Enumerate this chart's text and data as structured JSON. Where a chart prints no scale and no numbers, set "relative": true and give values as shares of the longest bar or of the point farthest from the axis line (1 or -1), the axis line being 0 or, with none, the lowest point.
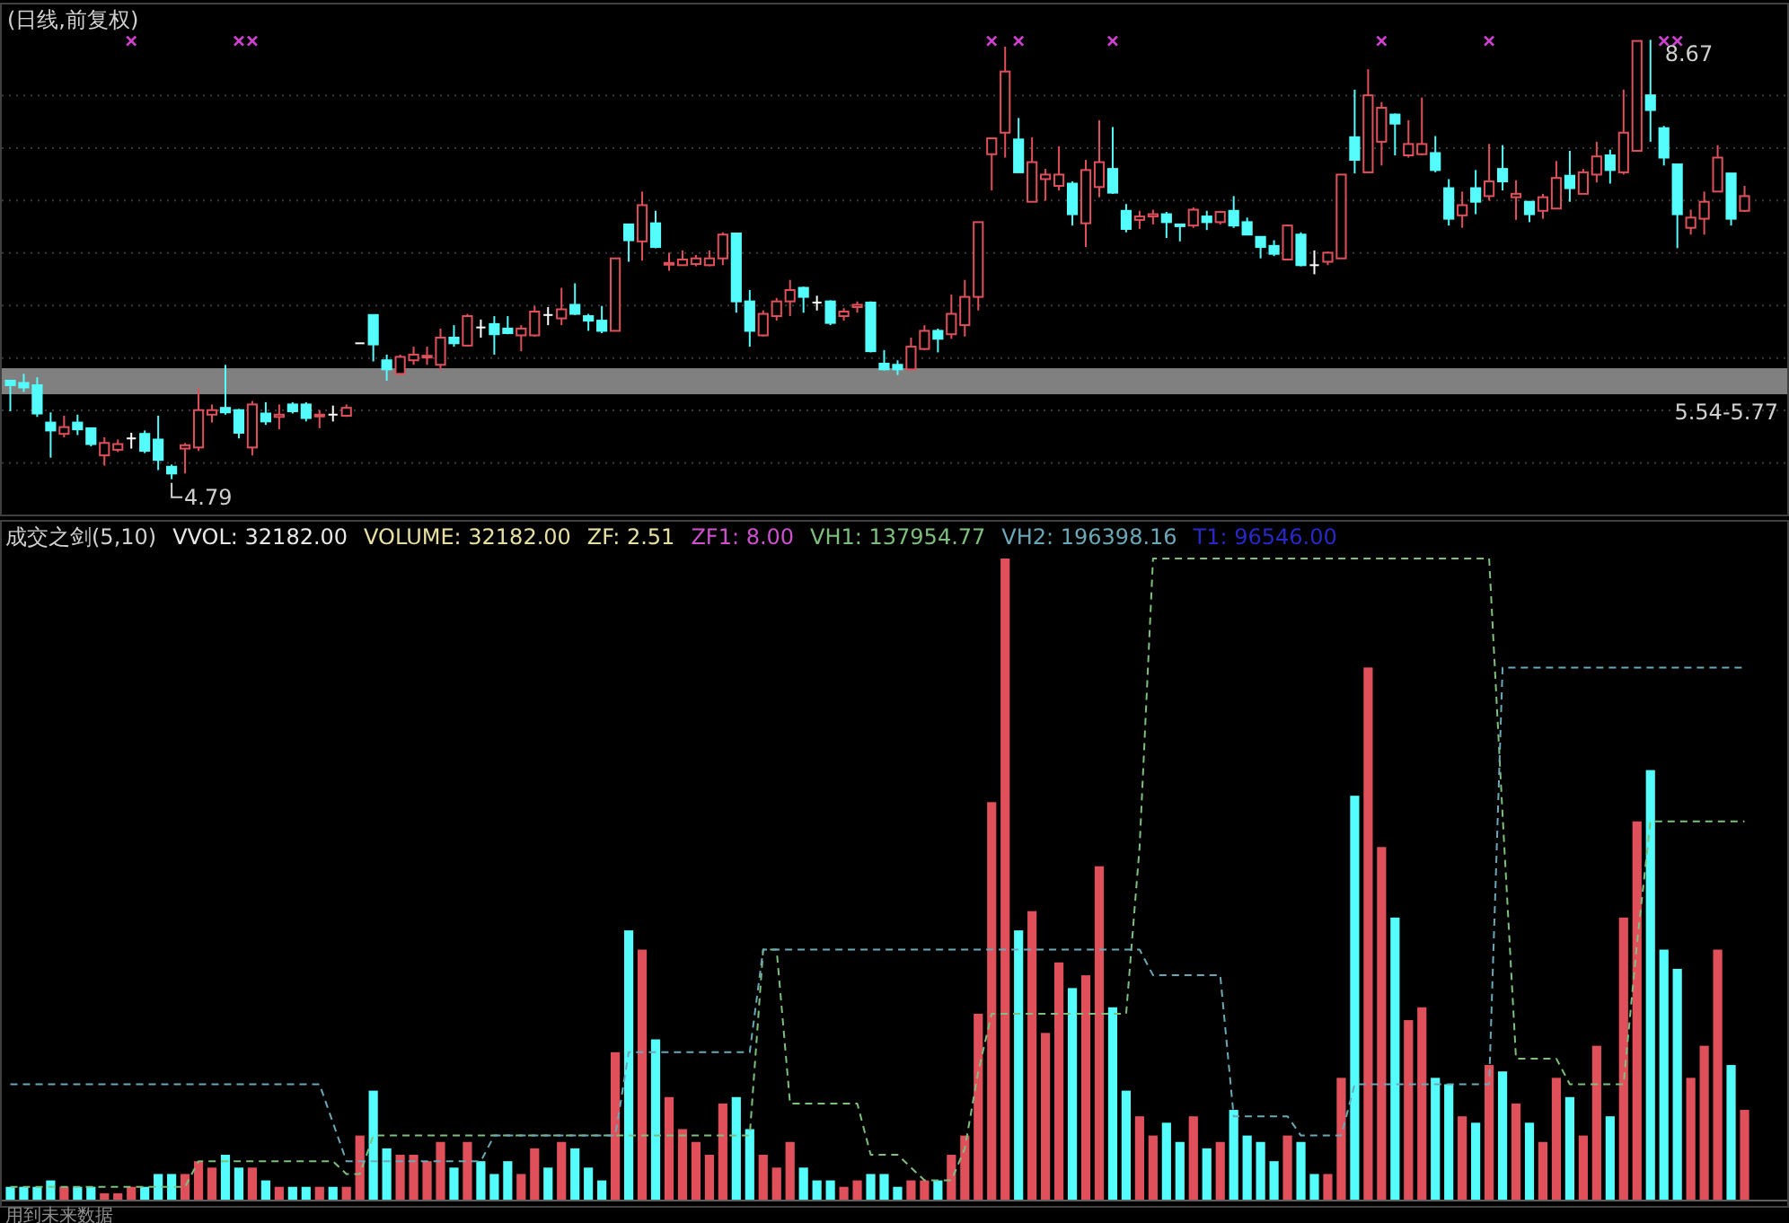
{
  "chart_data": [
    {
      "type": "candlestick",
      "title": "(日线,前复权)",
      "grid": true,
      "ylim": [
        4.47,
        8.99
      ],
      "marker": "cross",
      "categories": [
        null,
        null,
        null,
        null,
        null,
        null,
        null,
        null,
        null,
        null,
        null,
        null,
        null,
        null,
        null,
        null,
        null,
        null,
        null,
        null,
        null,
        null,
        null,
        null,
        null,
        null,
        null,
        null,
        null,
        null,
        null,
        null,
        null,
        null,
        null,
        null,
        null,
        null,
        null,
        null,
        null,
        null,
        null,
        null,
        null,
        null,
        null,
        null,
        null,
        null,
        null,
        null,
        null,
        null,
        null,
        null,
        null,
        null,
        null,
        null,
        null,
        null,
        null,
        null,
        null,
        null,
        null,
        null,
        null,
        null,
        null,
        null,
        null,
        null,
        null,
        null,
        null,
        null,
        null,
        null,
        null,
        null,
        null,
        null,
        null,
        null,
        null,
        null,
        null,
        null,
        null,
        null,
        null,
        null,
        null,
        null,
        null,
        null,
        null,
        null,
        null,
        null,
        null,
        null,
        null,
        null,
        null,
        null,
        null,
        null,
        null,
        null,
        null,
        null,
        null,
        null,
        null,
        null,
        null,
        null,
        null,
        null,
        null,
        null,
        null,
        null,
        null,
        null,
        null,
        null
      ],
      "ohlc": [
        [
          5.66,
          5.66,
          5.39,
          5.62
        ],
        [
          5.64,
          5.72,
          5.56,
          5.6
        ],
        [
          5.62,
          5.69,
          5.34,
          5.37
        ],
        [
          5.29,
          5.38,
          4.98,
          5.22
        ],
        [
          5.19,
          5.35,
          5.16,
          5.25
        ],
        [
          5.29,
          5.36,
          5.18,
          5.23
        ],
        [
          5.24,
          5.24,
          5.08,
          5.1
        ],
        [
          5.0,
          5.16,
          4.91,
          5.11
        ],
        [
          5.05,
          5.14,
          5.03,
          5.1
        ],
        [
          5.15,
          5.2,
          5.06,
          5.15
        ],
        [
          5.19,
          5.22,
          5.02,
          5.04
        ],
        [
          5.14,
          5.35,
          4.87,
          4.96
        ],
        [
          4.9,
          4.92,
          4.79,
          4.84
        ],
        [
          5.06,
          5.11,
          4.84,
          5.09
        ],
        [
          5.07,
          5.59,
          5.04,
          5.4
        ],
        [
          5.36,
          5.45,
          5.29,
          5.4
        ],
        [
          5.42,
          5.8,
          5.36,
          5.38
        ],
        [
          5.4,
          5.41,
          5.15,
          5.2
        ],
        [
          5.07,
          5.48,
          5.0,
          5.45
        ],
        [
          5.37,
          5.47,
          5.27,
          5.3
        ],
        [
          5.34,
          5.45,
          5.23,
          5.36
        ],
        [
          5.45,
          5.47,
          5.37,
          5.39
        ],
        [
          5.45,
          5.47,
          5.3,
          5.33
        ],
        [
          5.35,
          5.4,
          5.24,
          5.36
        ],
        [
          5.36,
          5.44,
          5.3,
          5.36
        ],
        [
          5.35,
          5.45,
          5.34,
          5.42
        ],
        [
          5.99,
          5.99,
          5.99,
          5.99
        ],
        [
          6.24,
          6.24,
          5.83,
          5.98
        ],
        [
          5.84,
          5.89,
          5.66,
          5.76
        ],
        [
          5.72,
          5.89,
          5.71,
          5.87
        ],
        [
          5.84,
          5.96,
          5.8,
          5.89
        ],
        [
          5.87,
          5.96,
          5.8,
          5.88
        ],
        [
          5.8,
          6.12,
          5.75,
          6.04
        ],
        [
          6.04,
          6.15,
          5.96,
          5.99
        ],
        [
          5.97,
          6.25,
          5.96,
          6.23
        ],
        [
          6.13,
          6.2,
          6.04,
          6.13
        ],
        [
          6.16,
          6.23,
          5.89,
          6.07
        ],
        [
          6.12,
          6.23,
          6.07,
          6.08
        ],
        [
          6.06,
          6.15,
          5.92,
          6.12
        ],
        [
          6.06,
          6.32,
          6.05,
          6.27
        ],
        [
          6.24,
          6.31,
          6.15,
          6.24
        ],
        [
          6.21,
          6.48,
          6.15,
          6.29
        ],
        [
          6.33,
          6.52,
          6.24,
          6.25
        ],
        [
          6.23,
          6.25,
          6.1,
          6.19
        ],
        [
          6.19,
          6.32,
          6.08,
          6.1
        ],
        [
          6.1,
          6.74,
          6.1,
          6.74
        ],
        [
          7.04,
          7.04,
          6.71,
          6.9
        ],
        [
          6.89,
          7.33,
          6.72,
          7.21
        ],
        [
          7.05,
          7.16,
          6.83,
          6.84
        ],
        [
          6.69,
          6.79,
          6.63,
          6.7
        ],
        [
          6.68,
          6.81,
          6.68,
          6.73
        ],
        [
          6.69,
          6.77,
          6.67,
          6.74
        ],
        [
          6.68,
          6.81,
          6.67,
          6.74
        ],
        [
          6.74,
          6.97,
          6.68,
          6.95
        ],
        [
          6.96,
          6.96,
          6.26,
          6.36
        ],
        [
          6.36,
          6.46,
          5.96,
          6.1
        ],
        [
          6.06,
          6.28,
          6.05,
          6.25
        ],
        [
          6.23,
          6.39,
          6.19,
          6.36
        ],
        [
          6.36,
          6.55,
          6.23,
          6.46
        ],
        [
          6.48,
          6.49,
          6.26,
          6.4
        ],
        [
          6.35,
          6.41,
          6.28,
          6.35
        ],
        [
          6.36,
          6.37,
          6.15,
          6.17
        ],
        [
          6.23,
          6.3,
          6.19,
          6.27
        ],
        [
          6.31,
          6.36,
          6.26,
          6.33
        ],
        [
          6.35,
          6.36,
          5.91,
          5.92
        ],
        [
          5.81,
          5.93,
          5.75,
          5.76
        ],
        [
          5.8,
          5.84,
          5.71,
          5.76
        ],
        [
          5.76,
          6.04,
          5.75,
          5.96
        ],
        [
          5.94,
          6.15,
          5.93,
          6.1
        ],
        [
          6.1,
          6.12,
          5.91,
          6.03
        ],
        [
          6.07,
          6.42,
          6.03,
          6.25
        ],
        [
          6.15,
          6.55,
          6.05,
          6.4
        ],
        [
          6.4,
          7.06,
          6.28,
          7.06
        ],
        [
          7.66,
          7.8,
          7.34,
          7.8
        ],
        [
          7.85,
          8.61,
          7.63,
          8.39
        ],
        [
          7.79,
          7.98,
          7.5,
          7.5
        ],
        [
          7.24,
          7.81,
          7.24,
          7.59
        ],
        [
          7.44,
          7.53,
          7.25,
          7.48
        ],
        [
          7.38,
          7.73,
          7.34,
          7.48
        ],
        [
          7.4,
          7.42,
          7.03,
          7.13
        ],
        [
          7.05,
          7.61,
          6.84,
          7.52
        ],
        [
          7.37,
          7.96,
          7.28,
          7.59
        ],
        [
          7.53,
          7.9,
          7.31,
          7.32
        ],
        [
          7.16,
          7.22,
          6.97,
          7.0
        ],
        [
          7.08,
          7.16,
          7.0,
          7.11
        ],
        [
          7.11,
          7.17,
          7.04,
          7.13
        ],
        [
          7.13,
          7.15,
          6.92,
          7.06
        ],
        [
          7.04,
          7.04,
          6.89,
          7.03
        ],
        [
          7.03,
          7.19,
          7.01,
          7.17
        ],
        [
          7.11,
          7.16,
          6.99,
          7.06
        ],
        [
          7.06,
          7.16,
          7.04,
          7.15
        ],
        [
          7.16,
          7.29,
          7.01,
          7.03
        ],
        [
          7.06,
          7.1,
          6.95,
          6.95
        ],
        [
          6.93,
          6.93,
          6.74,
          6.84
        ],
        [
          6.85,
          6.9,
          6.76,
          6.78
        ],
        [
          6.73,
          7.04,
          6.72,
          7.03
        ],
        [
          6.95,
          6.97,
          6.67,
          6.68
        ],
        [
          6.68,
          6.81,
          6.6,
          6.68
        ],
        [
          6.71,
          6.8,
          6.68,
          6.79
        ],
        [
          6.74,
          7.48,
          6.74,
          7.48
        ],
        [
          7.81,
          8.23,
          7.49,
          7.61
        ],
        [
          7.5,
          8.41,
          7.5,
          8.18
        ],
        [
          7.77,
          8.12,
          7.56,
          8.07
        ],
        [
          8.01,
          8.02,
          7.65,
          7.93
        ],
        [
          7.65,
          7.96,
          7.63,
          7.75
        ],
        [
          7.66,
          8.16,
          7.65,
          7.75
        ],
        [
          7.67,
          7.82,
          7.5,
          7.52
        ],
        [
          7.36,
          7.44,
          7.03,
          7.09
        ],
        [
          7.12,
          7.33,
          7.01,
          7.21
        ],
        [
          7.36,
          7.52,
          7.13,
          7.24
        ],
        [
          7.29,
          7.75,
          7.25,
          7.42
        ],
        [
          7.53,
          7.74,
          7.34,
          7.42
        ],
        [
          7.28,
          7.43,
          7.08,
          7.31
        ],
        [
          7.24,
          7.24,
          7.06,
          7.13
        ],
        [
          7.16,
          7.31,
          7.09,
          7.28
        ],
        [
          7.18,
          7.6,
          7.18,
          7.45
        ],
        [
          7.47,
          7.69,
          7.24,
          7.36
        ],
        [
          7.31,
          7.53,
          7.31,
          7.5
        ],
        [
          7.48,
          7.77,
          7.41,
          7.64
        ],
        [
          7.65,
          7.7,
          7.4,
          7.52
        ],
        [
          7.5,
          8.23,
          7.48,
          7.85
        ],
        [
          7.69,
          8.66,
          7.69,
          8.66
        ],
        [
          8.18,
          8.67,
          7.77,
          8.05
        ],
        [
          7.89,
          7.91,
          7.56,
          7.63
        ],
        [
          7.57,
          7.57,
          6.83,
          7.13
        ],
        [
          7.01,
          7.17,
          6.95,
          7.1
        ],
        [
          7.09,
          7.33,
          6.95,
          7.24
        ],
        [
          7.33,
          7.74,
          7.33,
          7.63
        ],
        [
          7.49,
          7.49,
          7.03,
          7.09
        ],
        [
          7.16,
          7.38,
          7.15,
          7.29
        ]
      ],
      "colors": [
        "#54fcfc",
        "#54fcfc",
        "#54fcfc",
        "#54fcfc",
        "#e0505a",
        "#54fcfc",
        "#54fcfc",
        "#e0505a",
        "#e0505a",
        "#ffffff",
        "#54fcfc",
        "#54fcfc",
        "#54fcfc",
        "#e0505a",
        "#e0505a",
        "#e0505a",
        "#54fcfc",
        "#54fcfc",
        "#e0505a",
        "#54fcfc",
        "#e0505a",
        "#54fcfc",
        "#54fcfc",
        "#e0505a",
        "#ffffff",
        "#e0505a",
        "#ffffff",
        "#54fcfc",
        "#54fcfc",
        "#e0505a",
        "#e0505a",
        "#e0505a",
        "#e0505a",
        "#54fcfc",
        "#e0505a",
        "#ffffff",
        "#54fcfc",
        "#54fcfc",
        "#e0505a",
        "#e0505a",
        "#ffffff",
        "#e0505a",
        "#54fcfc",
        "#54fcfc",
        "#54fcfc",
        "#e0505a",
        "#54fcfc",
        "#e0505a",
        "#54fcfc",
        "#e0505a",
        "#e0505a",
        "#e0505a",
        "#e0505a",
        "#e0505a",
        "#54fcfc",
        "#54fcfc",
        "#e0505a",
        "#e0505a",
        "#e0505a",
        "#54fcfc",
        "#ffffff",
        "#54fcfc",
        "#e0505a",
        "#e0505a",
        "#54fcfc",
        "#54fcfc",
        "#54fcfc",
        "#e0505a",
        "#e0505a",
        "#54fcfc",
        "#e0505a",
        "#e0505a",
        "#e0505a",
        "#e0505a",
        "#e0505a",
        "#54fcfc",
        "#e0505a",
        "#e0505a",
        "#e0505a",
        "#54fcfc",
        "#e0505a",
        "#e0505a",
        "#54fcfc",
        "#54fcfc",
        "#e0505a",
        "#e0505a",
        "#54fcfc",
        "#54fcfc",
        "#e0505a",
        "#54fcfc",
        "#e0505a",
        "#54fcfc",
        "#54fcfc",
        "#54fcfc",
        "#54fcfc",
        "#e0505a",
        "#54fcfc",
        "#ffffff",
        "#e0505a",
        "#e0505a",
        "#54fcfc",
        "#e0505a",
        "#e0505a",
        "#54fcfc",
        "#e0505a",
        "#e0505a",
        "#54fcfc",
        "#54fcfc",
        "#e0505a",
        "#54fcfc",
        "#e0505a",
        "#54fcfc",
        "#e0505a",
        "#54fcfc",
        "#e0505a",
        "#e0505a",
        "#54fcfc",
        "#e0505a",
        "#e0505a",
        "#54fcfc",
        "#e0505a",
        "#e0505a",
        "#54fcfc",
        "#54fcfc",
        "#54fcfc",
        "#e0505a",
        "#e0505a",
        "#e0505a",
        "#54fcfc",
        "#e0505a"
      ],
      "series": [
        {
          "type": "scatter",
          "color": "#d040d0",
          "values": [
            null,
            null,
            null,
            null,
            null,
            null,
            null,
            null,
            null,
            8.66,
            null,
            null,
            null,
            null,
            null,
            null,
            null,
            8.66,
            8.66,
            null,
            null,
            null,
            null,
            null,
            null,
            null,
            null,
            null,
            null,
            null,
            null,
            null,
            null,
            null,
            null,
            null,
            null,
            null,
            null,
            null,
            null,
            null,
            null,
            null,
            null,
            null,
            null,
            null,
            null,
            null,
            null,
            null,
            null,
            null,
            null,
            null,
            null,
            null,
            null,
            null,
            null,
            null,
            null,
            null,
            null,
            null,
            null,
            null,
            null,
            null,
            null,
            null,
            null,
            8.66,
            null,
            8.66,
            null,
            null,
            null,
            null,
            null,
            null,
            8.66,
            null,
            null,
            null,
            null,
            null,
            null,
            null,
            null,
            null,
            null,
            null,
            null,
            null,
            null,
            null,
            null,
            null,
            null,
            null,
            8.66,
            null,
            null,
            null,
            null,
            null,
            null,
            null,
            8.66,
            null,
            null,
            null,
            null,
            null,
            null,
            null,
            null,
            null,
            null,
            null,
            null,
            8.66,
            8.66,
            null,
            null,
            null,
            null,
            null
          ]
        }
      ],
      "bands": [
        {
          "axis": "y",
          "from": 5.54,
          "to": 5.77,
          "label": "5.54-5.77",
          "color": "#808080"
        }
      ],
      "annotations": [
        "8.67",
        "4.79"
      ]
    },
    {
      "type": "bar",
      "relative": true,
      "categories": [
        null,
        null,
        null,
        null,
        null,
        null,
        null,
        null,
        null,
        null,
        null,
        null,
        null,
        null,
        null,
        null,
        null,
        null,
        null,
        null,
        null,
        null,
        null,
        null,
        null,
        null,
        null,
        null,
        null,
        null,
        null,
        null,
        null,
        null,
        null,
        null,
        null,
        null,
        null,
        null,
        null,
        null,
        null,
        null,
        null,
        null,
        null,
        null,
        null,
        null,
        null,
        null,
        null,
        null,
        null,
        null,
        null,
        null,
        null,
        null,
        null,
        null,
        null,
        null,
        null,
        null,
        null,
        null,
        null,
        null,
        null,
        null,
        null,
        null,
        null,
        null,
        null,
        null,
        null,
        null,
        null,
        null,
        null,
        null,
        null,
        null,
        null,
        null,
        null,
        null,
        null,
        null,
        null,
        null,
        null,
        null,
        null,
        null,
        null,
        null,
        null,
        null,
        null,
        null,
        null,
        null,
        null,
        null,
        null,
        null,
        null,
        null,
        null,
        null,
        null,
        null,
        null,
        null,
        null,
        null,
        null,
        null,
        null,
        null,
        null,
        null,
        null,
        null,
        null,
        null
      ],
      "series": [
        {
          "type": "bar",
          "colors": [
            "#54fcfc",
            "#54fcfc",
            "#54fcfc",
            "#54fcfc",
            "#e0505a",
            "#54fcfc",
            "#54fcfc",
            "#e0505a",
            "#e0505a",
            "#e0505a",
            "#54fcfc",
            "#54fcfc",
            "#54fcfc",
            "#e0505a",
            "#e0505a",
            "#e0505a",
            "#54fcfc",
            "#54fcfc",
            "#e0505a",
            "#54fcfc",
            "#e0505a",
            "#54fcfc",
            "#54fcfc",
            "#e0505a",
            "#54fcfc",
            "#e0505a",
            "#e0505a",
            "#54fcfc",
            "#54fcfc",
            "#e0505a",
            "#e0505a",
            "#e0505a",
            "#e0505a",
            "#54fcfc",
            "#e0505a",
            "#54fcfc",
            "#54fcfc",
            "#54fcfc",
            "#e0505a",
            "#e0505a",
            "#54fcfc",
            "#e0505a",
            "#54fcfc",
            "#54fcfc",
            "#54fcfc",
            "#e0505a",
            "#54fcfc",
            "#e0505a",
            "#54fcfc",
            "#e0505a",
            "#e0505a",
            "#e0505a",
            "#e0505a",
            "#e0505a",
            "#54fcfc",
            "#54fcfc",
            "#e0505a",
            "#e0505a",
            "#e0505a",
            "#54fcfc",
            "#54fcfc",
            "#54fcfc",
            "#e0505a",
            "#e0505a",
            "#54fcfc",
            "#54fcfc",
            "#54fcfc",
            "#e0505a",
            "#e0505a",
            "#54fcfc",
            "#e0505a",
            "#e0505a",
            "#e0505a",
            "#e0505a",
            "#e0505a",
            "#54fcfc",
            "#e0505a",
            "#e0505a",
            "#e0505a",
            "#54fcfc",
            "#e0505a",
            "#e0505a",
            "#54fcfc",
            "#54fcfc",
            "#e0505a",
            "#e0505a",
            "#54fcfc",
            "#54fcfc",
            "#e0505a",
            "#54fcfc",
            "#e0505a",
            "#54fcfc",
            "#54fcfc",
            "#54fcfc",
            "#54fcfc",
            "#e0505a",
            "#54fcfc",
            "#54fcfc",
            "#e0505a",
            "#e0505a",
            "#54fcfc",
            "#e0505a",
            "#e0505a",
            "#54fcfc",
            "#e0505a",
            "#e0505a",
            "#54fcfc",
            "#54fcfc",
            "#e0505a",
            "#54fcfc",
            "#e0505a",
            "#54fcfc",
            "#e0505a",
            "#54fcfc",
            "#e0505a",
            "#e0505a",
            "#54fcfc",
            "#e0505a",
            "#e0505a",
            "#54fcfc",
            "#e0505a",
            "#e0505a",
            "#54fcfc",
            "#54fcfc",
            "#54fcfc",
            "#e0505a",
            "#e0505a",
            "#e0505a",
            "#54fcfc",
            "#e0505a"
          ],
          "values": [
            0.02,
            0.02,
            0.02,
            0.03,
            0.02,
            0.02,
            0.02,
            0.01,
            0.01,
            0.02,
            0.02,
            0.04,
            0.04,
            0.04,
            0.06,
            0.05,
            0.07,
            0.05,
            0.05,
            0.03,
            0.02,
            0.02,
            0.02,
            0.02,
            0.02,
            0.02,
            0.1,
            0.17,
            0.08,
            0.07,
            0.07,
            0.06,
            0.09,
            0.05,
            0.09,
            0.06,
            0.04,
            0.06,
            0.04,
            0.08,
            0.05,
            0.09,
            0.08,
            0.05,
            0.03,
            0.23,
            0.42,
            0.39,
            0.25,
            0.16,
            0.11,
            0.09,
            0.07,
            0.15,
            0.16,
            0.11,
            0.07,
            0.05,
            0.09,
            0.05,
            0.03,
            0.03,
            0.02,
            0.03,
            0.04,
            0.04,
            0.02,
            0.03,
            0.03,
            0.03,
            0.07,
            0.1,
            0.29,
            0.62,
            1,
            0.42,
            0.45,
            0.26,
            0.37,
            0.33,
            0.35,
            0.52,
            0.3,
            0.17,
            0.13,
            0.1,
            0.12,
            0.09,
            0.13,
            0.08,
            0.09,
            0.14,
            0.1,
            0.09,
            0.06,
            0.1,
            0.09,
            0.04,
            0.04,
            0.19,
            0.63,
            0.83,
            0.55,
            0.44,
            0.28,
            0.3,
            0.19,
            0.18,
            0.13,
            0.12,
            0.21,
            0.2,
            0.15,
            0.12,
            0.09,
            0.19,
            0.16,
            0.1,
            0.24,
            0.13,
            0.44,
            0.59,
            0.67,
            0.39,
            0.36,
            0.19,
            0.24,
            0.39,
            0.21,
            0.14
          ]
        }
      ],
      "annotations": [
        "成交之剑(5,10)",
        "VVOL: 32182.00",
        "VOLUME: 32182.00",
        "ZF: 2.51",
        "ZF1: 8.00",
        "T1: 96546.00",
        "用到未来数据"
      ]
    },
    {
      "type": "line",
      "relative": true,
      "line_style": "dashed",
      "categories": [
        null,
        null,
        null,
        null,
        null,
        null,
        null,
        null,
        null,
        null,
        null,
        null,
        null,
        null,
        null,
        null,
        null,
        null,
        null,
        null,
        null,
        null,
        null,
        null,
        null,
        null,
        null,
        null,
        null,
        null,
        null,
        null,
        null,
        null,
        null,
        null,
        null,
        null,
        null,
        null,
        null,
        null,
        null,
        null,
        null,
        null,
        null,
        null,
        null,
        null,
        null,
        null,
        null,
        null,
        null,
        null,
        null,
        null,
        null,
        null,
        null,
        null,
        null,
        null,
        null,
        null,
        null,
        null,
        null,
        null,
        null,
        null,
        null,
        null,
        null,
        null,
        null,
        null,
        null,
        null,
        null,
        null,
        null,
        null,
        null,
        null,
        null,
        null,
        null,
        null,
        null,
        null,
        null,
        null,
        null,
        null,
        null,
        null,
        null,
        null,
        null,
        null,
        null,
        null,
        null,
        null,
        null,
        null,
        null,
        null,
        null,
        null,
        null,
        null,
        null,
        null,
        null,
        null,
        null,
        null,
        null,
        null,
        null,
        null,
        null,
        null,
        null,
        null,
        null,
        null
      ],
      "series": [
        {
          "type": "line",
          "name": "VH1: 137954.77",
          "color": "#7cc07c",
          "values": [
            0.02,
            0.02,
            0.02,
            0.02,
            0.02,
            0.02,
            0.02,
            0.02,
            0.02,
            0.02,
            0.02,
            0.02,
            0.02,
            0.02,
            0.06,
            0.06,
            0.06,
            0.06,
            0.06,
            0.06,
            0.06,
            0.06,
            0.06,
            0.06,
            0.06,
            0.04,
            0.04,
            0.1,
            0.1,
            0.1,
            0.1,
            0.1,
            0.1,
            0.1,
            0.1,
            0.1,
            0.1,
            0.1,
            0.1,
            0.1,
            0.1,
            0.1,
            0.1,
            0.1,
            0.1,
            0.1,
            0.1,
            0.1,
            0.1,
            0.1,
            0.1,
            0.1,
            0.1,
            0.1,
            0.1,
            0.1,
            0.39,
            0.39,
            0.15,
            0.15,
            0.15,
            0.15,
            0.15,
            0.15,
            0.07,
            0.07,
            0.07,
            0.05,
            0.03,
            0.03,
            0.03,
            0.08,
            0.2,
            0.29,
            0.29,
            0.29,
            0.29,
            0.29,
            0.29,
            0.29,
            0.29,
            0.29,
            0.29,
            0.29,
            0.55,
            1,
            1,
            1,
            1,
            1,
            1,
            1,
            1,
            1,
            1,
            1,
            1,
            1,
            1,
            1,
            1,
            1,
            1,
            1,
            1,
            1,
            1,
            1,
            1,
            1,
            1,
            0.6,
            0.22,
            0.22,
            0.22,
            0.22,
            0.18,
            0.18,
            0.18,
            0.18,
            0.18,
            0.4,
            0.59,
            0.59,
            0.59,
            0.59,
            0.59,
            0.59,
            0.59,
            0.59
          ]
        },
        {
          "type": "line",
          "name": "VH2: 196398.16",
          "color": "#6aa8b8",
          "values": [
            0.18,
            0.18,
            0.18,
            0.18,
            0.18,
            0.18,
            0.18,
            0.18,
            0.18,
            0.18,
            0.18,
            0.18,
            0.18,
            0.18,
            0.18,
            0.18,
            0.18,
            0.18,
            0.18,
            0.18,
            0.18,
            0.18,
            0.18,
            0.18,
            0.12,
            0.06,
            0.06,
            0.06,
            0.06,
            0.06,
            0.06,
            0.06,
            0.06,
            0.06,
            0.06,
            0.06,
            0.1,
            0.1,
            0.1,
            0.1,
            0.1,
            0.1,
            0.1,
            0.1,
            0.1,
            0.1,
            0.23,
            0.23,
            0.23,
            0.23,
            0.23,
            0.23,
            0.23,
            0.23,
            0.23,
            0.23,
            0.39,
            0.39,
            0.39,
            0.39,
            0.39,
            0.39,
            0.39,
            0.39,
            0.39,
            0.39,
            0.39,
            0.39,
            0.39,
            0.39,
            0.39,
            0.39,
            0.39,
            0.39,
            0.39,
            0.39,
            0.39,
            0.39,
            0.39,
            0.39,
            0.39,
            0.39,
            0.39,
            0.39,
            0.39,
            0.35,
            0.35,
            0.35,
            0.35,
            0.35,
            0.35,
            0.13,
            0.13,
            0.13,
            0.13,
            0.13,
            0.1,
            0.1,
            0.1,
            0.1,
            0.18,
            0.18,
            0.18,
            0.18,
            0.18,
            0.18,
            0.18,
            0.18,
            0.18,
            0.18,
            0.18,
            0.83,
            0.83,
            0.83,
            0.83,
            0.83,
            0.83,
            0.83,
            0.83,
            0.83,
            0.83,
            0.83,
            0.83,
            0.83,
            0.83,
            0.83,
            0.83,
            0.83,
            0.83,
            0.83
          ]
        }
      ]
    }
  ]
}
